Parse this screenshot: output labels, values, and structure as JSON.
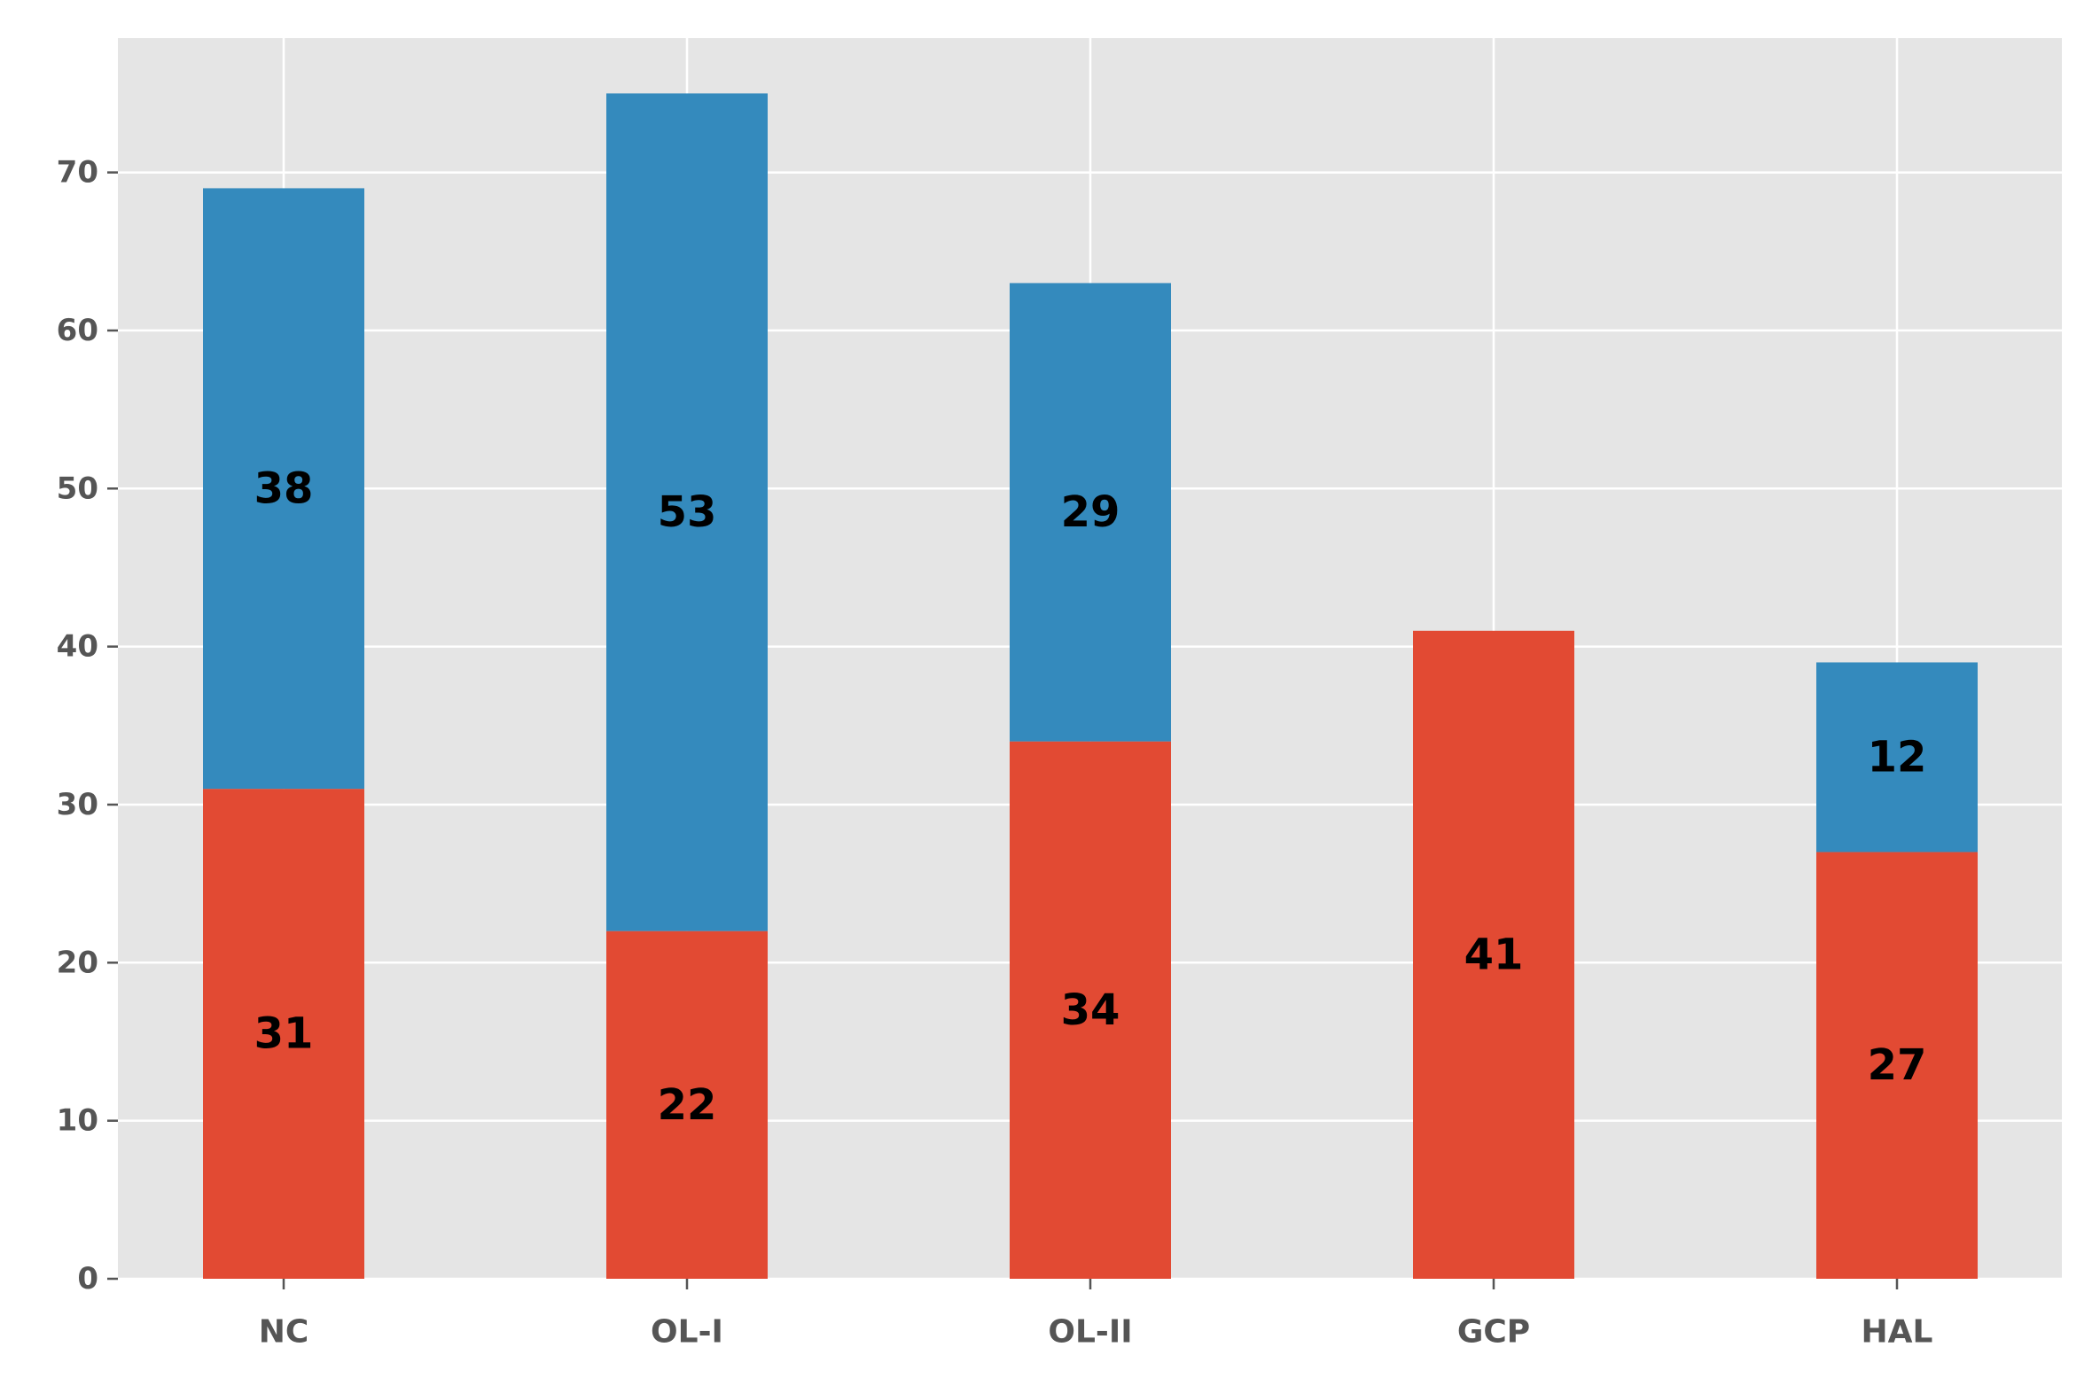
{
  "chart_data": {
    "type": "bar",
    "stacked": true,
    "title": "",
    "xlabel": "",
    "ylabel": "",
    "categories": [
      "NC",
      "OL-I",
      "OL-II",
      "GCP",
      "HAL"
    ],
    "series": [
      {
        "name": "bottom",
        "color": "#E24A33",
        "values": [
          31,
          22,
          34,
          41,
          27
        ]
      },
      {
        "name": "top",
        "color": "#348ABD",
        "values": [
          38,
          53,
          29,
          0,
          12
        ]
      }
    ],
    "ylim": [
      0,
      78.5
    ],
    "yticks": [
      0,
      10,
      20,
      30,
      40,
      50,
      60,
      70
    ],
    "grid": true,
    "colors": {
      "background": "#E5E5E5",
      "grid": "#FFFFFF",
      "tick_label": "#555555",
      "data_label": "#000000"
    }
  }
}
